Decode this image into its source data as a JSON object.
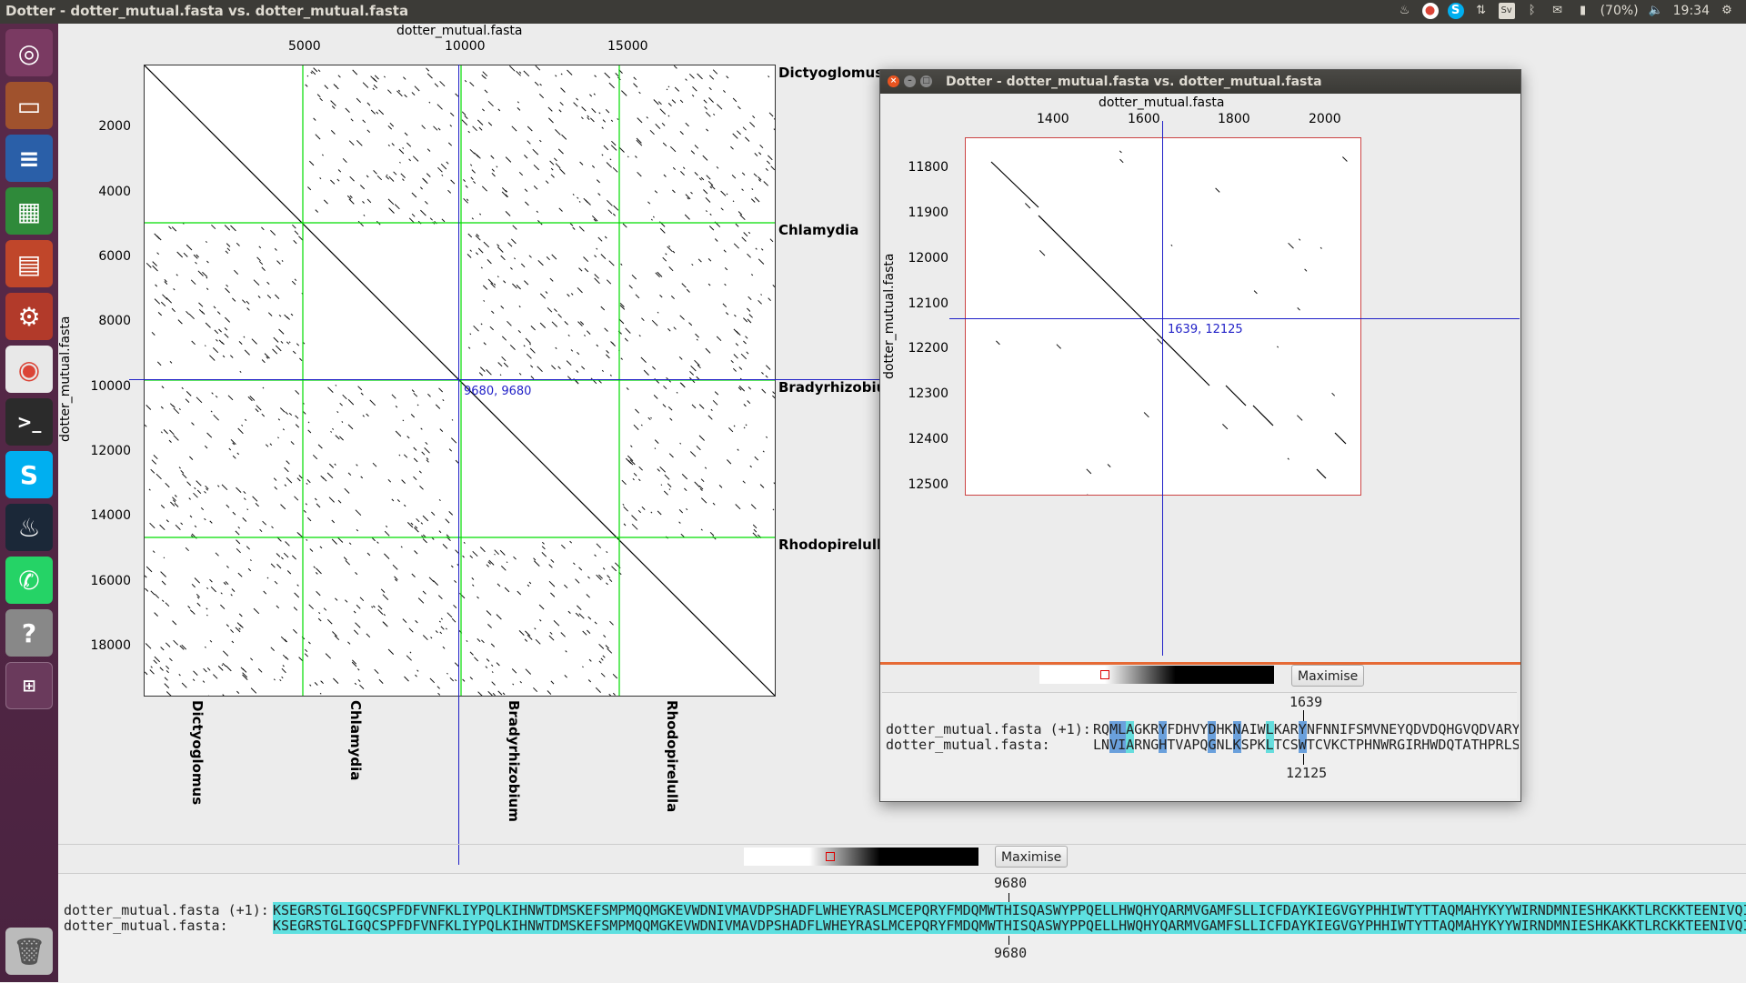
{
  "topbar": {
    "title": "Dotter - dotter_mutual.fasta vs. dotter_mutual.fasta",
    "battery": "(70%)",
    "time": "19:34",
    "icons": [
      "steam-icon",
      "chrome-icon",
      "skype-icon",
      "network-icon",
      "keyboard-sv-icon",
      "bluetooth-icon",
      "mail-icon",
      "battery-icon",
      "volume-icon",
      "settings-icon"
    ]
  },
  "launcher": {
    "items": [
      "ubuntu-dash",
      "files",
      "writer",
      "calc",
      "impress",
      "system-settings",
      "chrome",
      "terminal",
      "skype",
      "steam",
      "whatsapp",
      "help",
      "workspaces"
    ],
    "trash": "trash"
  },
  "main": {
    "x_title": "dotter_mutual.fasta",
    "y_title": "dotter_mutual.fasta",
    "x_ticks": [
      "5000",
      "10000",
      "15000"
    ],
    "y_ticks": [
      "2000",
      "4000",
      "6000",
      "8000",
      "10000",
      "12000",
      "14000",
      "16000",
      "18000"
    ],
    "right_names": [
      "Dictyoglomus",
      "Chlamydia",
      "Bradyrhizobium",
      "Rhodopirelulla"
    ],
    "bottom_names": [
      "Dictyoglomus",
      "Chlamydia",
      "Bradyrhizobium",
      "Rhodopirelulla"
    ],
    "crosshair_label": "9680, 9680",
    "maximise_label": "Maximise",
    "align_pos_top": "9680",
    "align_pos_bottom": "9680",
    "align_name1": "dotter_mutual.fasta (+1):",
    "align_name2": "dotter_mutual.fasta:",
    "align_seq1": "KSEGRSTGLIGQCSPFDFVNFKLIYPQLKIHNWTDMSKEFSMPMQQMGKEVWDNIVMAVDPSHADFLWHEYRASLMCEPQRYFMDQMWTHISQASWYPPQELLHWQHYQARMVGAMFSLLICFDAYKIEGVGYPHHIWTYTTAQMAHYKYYWIRNDMNIESHKAKKTLRCKKTEENIVQI",
    "align_seq2": "KSEGRSTGLIGQCSPFDFVNFKLIYPQLKIHNWTDMSKEFSMPMQQMGKEVWDNIVMAVDPSHADFLWHEYRASLMCEPQRYFMDQMWTHISQASWYPPQELLHWQHYQARMVGAMFSLLICFDAYKIEGVGYPHHIWTYTTAQMAHYKYYWIRNDMNIESHKAKKTLRCKKTEENIVQI"
  },
  "zoom": {
    "title": "Dotter - dotter_mutual.fasta vs. dotter_mutual.fasta",
    "x_title": "dotter_mutual.fasta",
    "y_title": "dotter_mutual.fasta",
    "x_ticks": [
      "1400",
      "1600",
      "1800",
      "2000"
    ],
    "y_ticks": [
      "11800",
      "11900",
      "12000",
      "12100",
      "12200",
      "12300",
      "12400",
      "12500"
    ],
    "crosshair_label": "1639, 12125",
    "maximise_label": "Maximise",
    "align_pos_top": "1639",
    "align_pos_bottom": "12125",
    "align_name1": "dotter_mutual.fasta (+1):",
    "align_name2": "dotter_mutual.fasta:",
    "align_seq1": "RQMLAGKRYFDHVYDHKNAIWLKARYNFNNIFSMVNEYQDVDQHGVQDVARY",
    "align_seq2": "LNVIARNGHTVAPQGNLKSPKLTCSWTCVKCTPHNWRGIRHWDQTATHPRLS"
  },
  "colors": {
    "grid": "#00dd00",
    "crosshair": "#1f1fc7",
    "highlight": "#5ee0e0",
    "divider": "#e66a35"
  }
}
